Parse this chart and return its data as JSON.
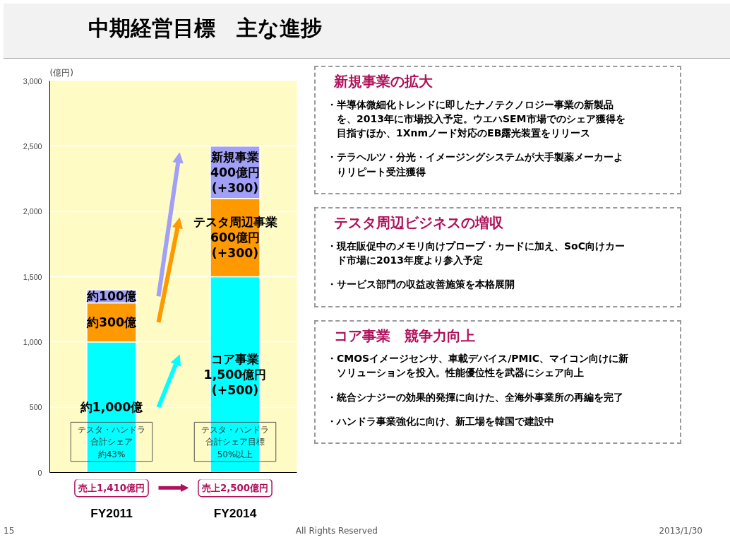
{
  "chart_data": {
    "type": "bar",
    "stacked": true,
    "title": "中期経営目標　主な進捗",
    "ylabel": "(億円)",
    "categories": [
      "FY2011",
      "FY2014"
    ],
    "series": [
      {
        "color": "#00ffff",
        "values": [
          1000,
          1500
        ],
        "value_labels": [
          "約1,000億",
          "コア事業\n1,500億円\n(+500)"
        ]
      },
      {
        "color": "#ff9900",
        "values": [
          300,
          600
        ],
        "value_labels": [
          "約300億",
          "テスタ周辺事業\n600億円\n(+300)"
        ]
      },
      {
        "color": "#a0a0f8",
        "values": [
          100,
          400
        ],
        "value_labels": [
          "約100億",
          "新規事業\n400億円\n(+300)"
        ]
      }
    ],
    "ylim": [
      0,
      3000
    ],
    "yticks": [
      0,
      500,
      {
        "value": 1000,
        "label": "1,000"
      },
      {
        "value": 1500,
        "label": "1,500"
      },
      {
        "value": 2000,
        "label": "2,000"
      },
      {
        "value": 2500,
        "label": "2,500"
      },
      {
        "value": 3000,
        "label": "3,000"
      }
    ],
    "grid": "y",
    "annotations": [
      "テスタ・ハンドラ",
      "合計シェア",
      "約43%",
      "テスタ・ハンドラ",
      "合計シェア目標",
      "50%以上",
      "売上1,410億円",
      "売上2,500億円",
      "新規事業の拡大",
      "・半導体微細化トレンドに即したナノテクノロジー事業の新製品を、2013年に市場投入予定。ウエハSEM市場でのシェア獲得を目指すほか、1Xnmノード対応のEB露光装置をリリース",
      "・テラヘルツ・分光・イメージングシステムが大手製薬メーカーよりリピート受注獲得",
      "テスタ周辺ビジネスの増収",
      "・現在販促中のメモリ向けプローブ・カードに加え、SoC向けカード市場に2013年度より参入予定",
      "・サービス部門の収益改善施策を本格展開",
      "コア事業　競争力向上",
      "・CMOSイメージセンサ、車載デバイス/PMIC、マイコン向けに新ソリューションを投入。性能優位性を武器にシェア向上",
      "・統合シナジーの効果的発揮に向けた、全海外事業所の再編を完了",
      "・ハンドラ事業強化に向け、新工場を韓国で建設中",
      "15",
      "All Rights Reserved",
      "2013/1/30"
    ]
  }
}
